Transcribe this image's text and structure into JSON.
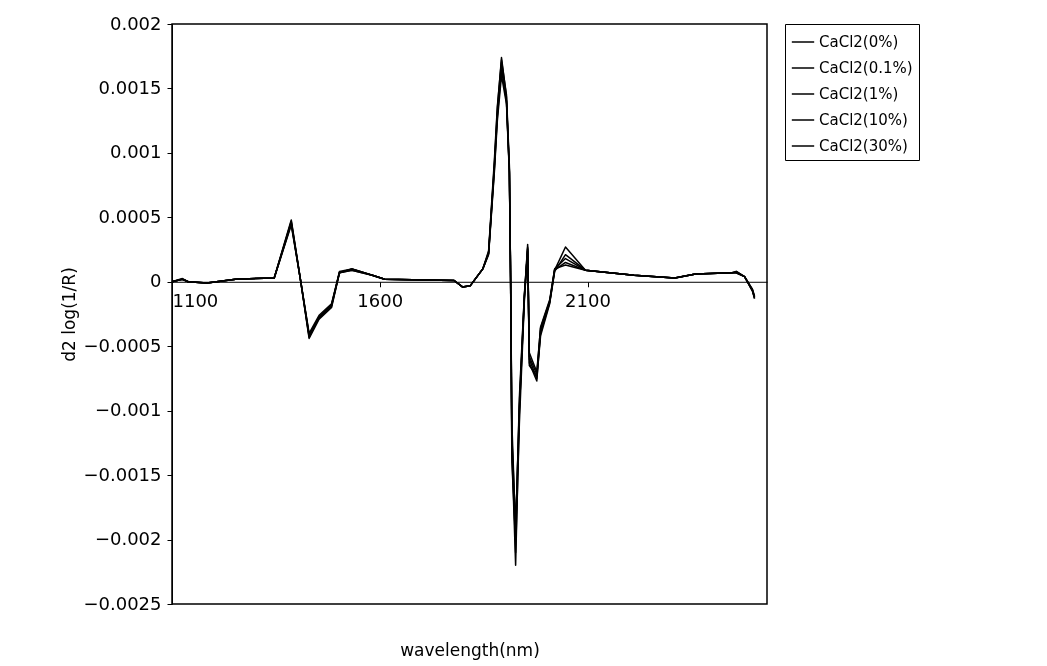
{
  "chart_data": {
    "type": "line",
    "xlabel": "wavelength(nm)",
    "ylabel": "d2 log(1/R)",
    "xlim": [
      1100,
      2532
    ],
    "xticks": [
      1100,
      1600,
      2100
    ],
    "ylim": [
      -0.0025,
      0.002
    ],
    "yticks": [
      -0.0025,
      -0.002,
      -0.0015,
      -0.001,
      -0.0005,
      0,
      0.0005,
      0.001,
      0.0015,
      0.002
    ],
    "grid": false,
    "legend": "right",
    "marker": "none",
    "line_style": "solid",
    "series": [
      {
        "name": "CaCl2(0%)",
        "color": "#000000",
        "x": [
          1100,
          1125,
          1139,
          1184,
          1253,
          1346,
          1387,
          1410,
          1430,
          1454,
          1484,
          1503,
          1533,
          1582,
          1612,
          1779,
          1799,
          1818,
          1848,
          1862,
          1876,
          1883,
          1893,
          1905,
          1912,
          1915,
          1918,
          1927,
          1936,
          1948,
          1956,
          1960,
          1978,
          1987,
          2009,
          2021,
          2047,
          2095,
          2212,
          2310,
          2360,
          2448,
          2458,
          2478,
          2497,
          2502
        ],
        "values": [
          0,
          2.5e-05,
          0,
          -1e-05,
          2e-05,
          3e-05,
          0.00048,
          0,
          -0.00044,
          -0.00029,
          -0.0002,
          7e-05,
          0.0001,
          5e-05,
          2e-05,
          1e-05,
          -4e-05,
          -3e-05,
          0.0001,
          0.00023,
          0.00092,
          0.00134,
          0.00174,
          0.00143,
          0.00087,
          0,
          -0.0013,
          -0.0022,
          -0.001,
          -0.00012,
          0.00029,
          -0.00063,
          -0.00077,
          -0.00038,
          -0.00016,
          9e-05,
          0.00027,
          9e-05,
          5e-05,
          3e-05,
          6e-05,
          7e-05,
          8e-05,
          4e-05,
          -7e-05,
          -0.00013
        ]
      },
      {
        "name": "CaCl2(0.1%)",
        "color": "#000000",
        "x": [
          1100,
          1125,
          1139,
          1184,
          1253,
          1346,
          1387,
          1410,
          1430,
          1454,
          1484,
          1503,
          1533,
          1582,
          1612,
          1779,
          1799,
          1818,
          1848,
          1862,
          1876,
          1883,
          1893,
          1905,
          1912,
          1915,
          1918,
          1927,
          1936,
          1948,
          1956,
          1960,
          1978,
          1987,
          2009,
          2021,
          2047,
          2095,
          2212,
          2310,
          2360,
          2448,
          2458,
          2478,
          2497,
          2502
        ],
        "values": [
          0,
          2e-05,
          0,
          -1e-05,
          2e-05,
          3e-05,
          0.00046,
          0,
          -0.00042,
          -0.00028,
          -0.00019,
          7e-05,
          0.0001,
          5e-05,
          2e-05,
          1e-05,
          -4e-05,
          -3e-05,
          0.0001,
          0.00022,
          0.0009,
          0.0013,
          0.0017,
          0.0014,
          0.00085,
          0,
          -0.0012,
          -0.0021,
          -0.0011,
          -0.00015,
          0.00026,
          -0.0006,
          -0.00075,
          -0.00042,
          -0.00017,
          8e-05,
          0.00021,
          9e-05,
          5e-05,
          3e-05,
          6e-05,
          7e-05,
          7e-05,
          4e-05,
          -7e-05,
          -0.00012
        ]
      },
      {
        "name": "CaCl2(1%)",
        "color": "#000000",
        "x": [
          1100,
          1125,
          1139,
          1184,
          1253,
          1346,
          1387,
          1410,
          1430,
          1454,
          1484,
          1503,
          1533,
          1582,
          1612,
          1779,
          1799,
          1818,
          1848,
          1862,
          1876,
          1883,
          1893,
          1905,
          1912,
          1915,
          1918,
          1927,
          1936,
          1948,
          1956,
          1960,
          1978,
          1987,
          2009,
          2021,
          2047,
          2095,
          2212,
          2310,
          2360,
          2448,
          2458,
          2478,
          2497,
          2502
        ],
        "values": [
          0,
          2e-05,
          0,
          -1e-05,
          2e-05,
          3e-05,
          0.00047,
          0,
          -0.00043,
          -0.00027,
          -0.00018,
          8e-05,
          0.0001,
          5e-05,
          2e-05,
          1e-05,
          -4e-05,
          -3e-05,
          0.0001,
          0.00024,
          0.00095,
          0.00136,
          0.00172,
          0.00145,
          0.0009,
          0,
          -0.0014,
          -0.002,
          -0.0009,
          -0.0001,
          0.00027,
          -0.00065,
          -0.00073,
          -0.00035,
          -0.00014,
          0.0001,
          0.00018,
          9e-05,
          5e-05,
          3e-05,
          6e-05,
          7e-05,
          8e-05,
          4e-05,
          -7e-05,
          -0.00013
        ]
      },
      {
        "name": "CaCl2(10%)",
        "color": "#000000",
        "x": [
          1100,
          1125,
          1139,
          1184,
          1253,
          1346,
          1387,
          1410,
          1430,
          1454,
          1484,
          1503,
          1533,
          1582,
          1612,
          1779,
          1799,
          1818,
          1848,
          1862,
          1876,
          1883,
          1893,
          1905,
          1912,
          1915,
          1918,
          1927,
          1936,
          1948,
          1956,
          1960,
          1978,
          1987,
          2009,
          2021,
          2047,
          2095,
          2212,
          2310,
          2360,
          2448,
          2458,
          2478,
          2497,
          2502
        ],
        "values": [
          0,
          2e-05,
          0,
          -1e-05,
          2e-05,
          3e-05,
          0.00045,
          0,
          -0.00041,
          -0.00028,
          -0.00018,
          7e-05,
          9e-05,
          5e-05,
          2e-05,
          1e-05,
          -4e-05,
          -3e-05,
          0.0001,
          0.00022,
          0.00088,
          0.00128,
          0.00165,
          0.0014,
          0.00086,
          0,
          -0.0012,
          -0.0019,
          -0.001,
          -0.00013,
          0.00025,
          -0.00058,
          -0.00072,
          -0.0004,
          -0.00016,
          9e-05,
          0.00015,
          9e-05,
          5e-05,
          3e-05,
          6e-05,
          7e-05,
          7e-05,
          4e-05,
          -6e-05,
          -0.00012
        ]
      },
      {
        "name": "CaCl2(30%)",
        "color": "#000000",
        "x": [
          1100,
          1125,
          1139,
          1184,
          1253,
          1346,
          1387,
          1410,
          1430,
          1454,
          1484,
          1503,
          1533,
          1582,
          1612,
          1779,
          1799,
          1818,
          1848,
          1862,
          1876,
          1883,
          1893,
          1905,
          1912,
          1915,
          1918,
          1927,
          1936,
          1948,
          1956,
          1960,
          1978,
          1987,
          2009,
          2021,
          2047,
          2095,
          2212,
          2310,
          2360,
          2448,
          2458,
          2478,
          2497,
          2502
        ],
        "values": [
          0,
          2e-05,
          0,
          -1e-05,
          2e-05,
          3e-05,
          0.00044,
          0,
          -0.0004,
          -0.00026,
          -0.00017,
          7e-05,
          9e-05,
          5e-05,
          2e-05,
          1e-05,
          -4e-05,
          -3e-05,
          0.0001,
          0.00021,
          0.00086,
          0.00125,
          0.0016,
          0.00138,
          0.00084,
          0,
          -0.0011,
          -0.00195,
          -0.00095,
          -0.00011,
          0.00024,
          -0.00055,
          -0.0007,
          -0.00036,
          -0.00015,
          0.0001,
          0.00013,
          9e-05,
          5e-05,
          3e-05,
          6e-05,
          7e-05,
          7e-05,
          4e-05,
          -6e-05,
          -0.00011
        ]
      }
    ]
  }
}
